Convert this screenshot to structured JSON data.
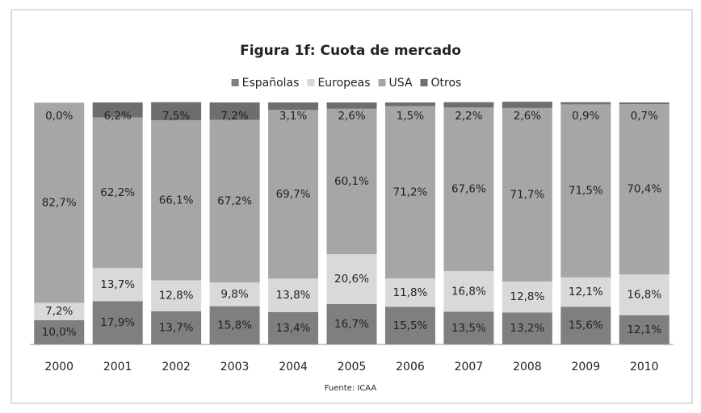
{
  "chart_data": {
    "type": "stacked_bar",
    "title": "Figura 1f: Cuota de mercado",
    "source": "Fuente: ICAA",
    "categories": [
      "2000",
      "2001",
      "2002",
      "2003",
      "2004",
      "2005",
      "2006",
      "2007",
      "2008",
      "2009",
      "2010"
    ],
    "ylim": [
      0,
      100
    ],
    "series": [
      {
        "name": "Españolas",
        "color": "#7f7f7f",
        "values": [
          10.0,
          17.9,
          13.7,
          15.8,
          13.4,
          16.7,
          15.5,
          13.5,
          13.2,
          15.6,
          12.1
        ],
        "value_labels": [
          "10,0%",
          "17,9%",
          "13,7%",
          "15,8%",
          "13,4%",
          "16,7%",
          "15,5%",
          "13,5%",
          "13,2%",
          "15,6%",
          "12,1%"
        ]
      },
      {
        "name": "Europeas",
        "color": "#d9d9d9",
        "values": [
          7.2,
          13.7,
          12.8,
          9.8,
          13.8,
          20.6,
          11.8,
          16.8,
          12.8,
          12.1,
          16.8
        ],
        "value_labels": [
          "7,2%",
          "13,7%",
          "12,8%",
          "9,8%",
          "13,8%",
          "20,6%",
          "11,8%",
          "16,8%",
          "12,8%",
          "12,1%",
          "16,8%"
        ]
      },
      {
        "name": "USA",
        "color": "#a6a6a6",
        "values": [
          82.7,
          62.2,
          66.1,
          67.2,
          69.7,
          60.1,
          71.2,
          67.6,
          71.7,
          71.5,
          70.4
        ],
        "value_labels": [
          "82,7%",
          "62,2%",
          "66,1%",
          "67,2%",
          "69,7%",
          "60,1%",
          "71,2%",
          "67,6%",
          "71,7%",
          "71,5%",
          "70,4%"
        ]
      },
      {
        "name": "Otros",
        "color": "#6e6e6e",
        "values": [
          0.0,
          6.2,
          7.5,
          7.2,
          3.1,
          2.6,
          1.5,
          2.2,
          2.6,
          0.9,
          0.7
        ],
        "value_labels": [
          "0,0%",
          "6,2%",
          "7,5%",
          "7,2%",
          "3,1%",
          "2,6%",
          "1,5%",
          "2,2%",
          "2,6%",
          "0,9%",
          "0,7%"
        ]
      }
    ]
  }
}
